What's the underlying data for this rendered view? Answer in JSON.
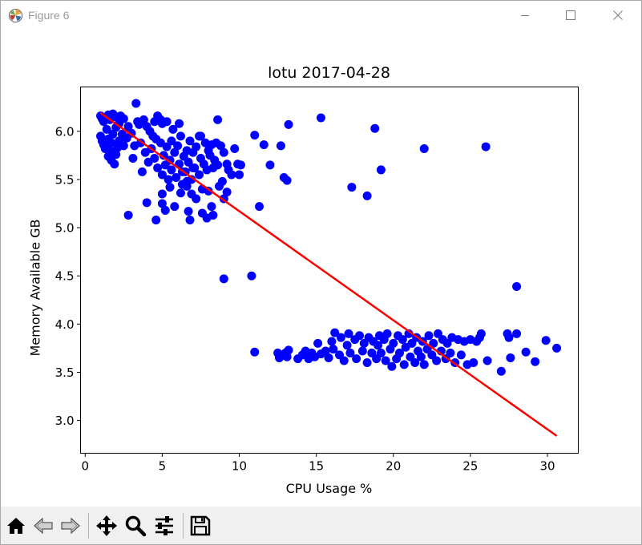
{
  "window": {
    "title": "Figure 6",
    "icons": [
      "matplotlib-icon",
      "minimize-icon",
      "maximize-icon",
      "close-icon"
    ]
  },
  "toolbar": {
    "buttons": [
      "home-icon",
      "back-icon",
      "forward-icon",
      "pan-icon",
      "zoom-icon",
      "configure-subplots-icon",
      "save-icon"
    ]
  },
  "chart_data": {
    "type": "scatter",
    "title": "lotu 2017-04-28",
    "xlabel": "CPU Usage %",
    "ylabel": "Memory Available GB",
    "xlim": [
      -0.3,
      32
    ],
    "ylim": [
      2.66,
      6.46
    ],
    "xticks": [
      0,
      5,
      10,
      15,
      20,
      25,
      30
    ],
    "xtick_labels": [
      "0",
      "5",
      "10",
      "15",
      "20",
      "25",
      "30"
    ],
    "yticks": [
      3.0,
      3.5,
      4.0,
      4.5,
      5.0,
      5.5,
      6.0
    ],
    "ytick_labels": [
      "3.0",
      "3.5",
      "4.0",
      "4.5",
      "5.0",
      "5.5",
      "6.0"
    ],
    "grid": false,
    "legend": "none",
    "colors": {
      "points": "#0000ff",
      "fit_line": "#ff0000"
    },
    "series": [
      {
        "kind": "points",
        "points": [
          [
            1.0,
            6.16
          ],
          [
            1.1,
            6.13
          ],
          [
            1.2,
            6.1
          ],
          [
            1.3,
            6.14
          ],
          [
            1.5,
            6.17
          ],
          [
            1.6,
            6.12
          ],
          [
            1.8,
            6.18
          ],
          [
            2.0,
            6.15
          ],
          [
            2.3,
            6.16
          ],
          [
            2.5,
            6.13
          ],
          [
            2.2,
            6.08
          ],
          [
            1.0,
            5.95
          ],
          [
            1.1,
            5.9
          ],
          [
            1.2,
            5.86
          ],
          [
            1.4,
            6.02
          ],
          [
            1.5,
            5.92
          ],
          [
            1.6,
            5.8
          ],
          [
            1.7,
            5.88
          ],
          [
            1.8,
            5.97
          ],
          [
            2.0,
            6.04
          ],
          [
            2.1,
            5.83
          ],
          [
            1.3,
            5.82
          ],
          [
            1.5,
            5.74
          ],
          [
            1.7,
            5.7
          ],
          [
            1.9,
            5.66
          ],
          [
            2.0,
            5.76
          ],
          [
            2.2,
            5.9
          ],
          [
            2.4,
            5.97
          ],
          [
            2.5,
            5.85
          ],
          [
            2.7,
            5.93
          ],
          [
            2.8,
            6.05
          ],
          [
            3.0,
            5.98
          ],
          [
            3.3,
            6.29
          ],
          [
            3.4,
            6.1
          ],
          [
            3.5,
            6.07
          ],
          [
            3.6,
            5.88
          ],
          [
            3.8,
            6.12
          ],
          [
            4.0,
            6.05
          ],
          [
            4.2,
            6.0
          ],
          [
            4.4,
            5.95
          ],
          [
            4.5,
            6.1
          ],
          [
            4.7,
            6.16
          ],
          [
            4.9,
            6.12
          ],
          [
            5.0,
            6.08
          ],
          [
            5.3,
            6.1
          ],
          [
            3.1,
            5.72
          ],
          [
            3.2,
            5.85
          ],
          [
            3.7,
            5.58
          ],
          [
            3.9,
            5.78
          ],
          [
            4.1,
            5.68
          ],
          [
            4.3,
            5.82
          ],
          [
            4.5,
            5.72
          ],
          [
            4.7,
            5.62
          ],
          [
            4.9,
            5.88
          ],
          [
            5.0,
            5.55
          ],
          [
            5.1,
            5.75
          ],
          [
            5.2,
            5.65
          ],
          [
            5.3,
            5.84
          ],
          [
            5.4,
            5.5
          ],
          [
            5.5,
            5.7
          ],
          [
            5.6,
            5.6
          ],
          [
            5.8,
            5.78
          ],
          [
            5.9,
            5.52
          ],
          [
            6.0,
            5.85
          ],
          [
            6.1,
            5.66
          ],
          [
            6.2,
            5.95
          ],
          [
            6.3,
            5.45
          ],
          [
            6.4,
            5.74
          ],
          [
            6.5,
            5.58
          ],
          [
            6.6,
            5.8
          ],
          [
            6.7,
            5.68
          ],
          [
            6.8,
            5.9
          ],
          [
            6.9,
            5.5
          ],
          [
            7.0,
            5.78
          ],
          [
            7.1,
            5.62
          ],
          [
            7.2,
            5.84
          ],
          [
            7.4,
            5.55
          ],
          [
            7.5,
            5.72
          ],
          [
            7.6,
            5.4
          ],
          [
            7.7,
            5.66
          ],
          [
            7.8,
            5.88
          ],
          [
            7.9,
            5.6
          ],
          [
            8.0,
            5.8
          ],
          [
            8.1,
            5.75
          ],
          [
            8.2,
            5.86
          ],
          [
            8.3,
            5.62
          ],
          [
            8.4,
            5.7
          ],
          [
            8.5,
            5.88
          ],
          [
            8.6,
            5.65
          ],
          [
            8.8,
            5.85
          ],
          [
            9.0,
            5.78
          ],
          [
            9.2,
            5.66
          ],
          [
            9.3,
            5.6
          ],
          [
            9.5,
            5.55
          ],
          [
            9.7,
            5.82
          ],
          [
            9.9,
            5.66
          ],
          [
            10.1,
            5.65
          ],
          [
            10.0,
            5.55
          ],
          [
            6.1,
            6.08
          ],
          [
            8.6,
            6.12
          ],
          [
            5.7,
            6.02
          ],
          [
            7.5,
            5.95
          ],
          [
            8.9,
            5.48
          ],
          [
            8.7,
            5.43
          ],
          [
            9.2,
            5.37
          ],
          [
            9.0,
            5.3
          ],
          [
            8.0,
            5.38
          ],
          [
            8.2,
            5.22
          ],
          [
            7.2,
            5.3
          ],
          [
            7.6,
            5.15
          ],
          [
            6.6,
            5.43
          ],
          [
            6.2,
            5.36
          ],
          [
            5.5,
            5.42
          ],
          [
            5.0,
            5.35
          ],
          [
            5.0,
            5.25
          ],
          [
            6.7,
            5.17
          ],
          [
            6.8,
            5.08
          ],
          [
            4.6,
            5.08
          ],
          [
            5.2,
            5.18
          ],
          [
            4.0,
            5.26
          ],
          [
            2.8,
            5.13
          ],
          [
            7.9,
            5.1
          ],
          [
            8.3,
            5.13
          ],
          [
            5.8,
            5.22
          ],
          [
            6.9,
            5.35
          ],
          [
            6.3,
            5.58
          ],
          [
            6.6,
            5.48
          ],
          [
            7.0,
            5.62
          ],
          [
            7.4,
            5.95
          ],
          [
            5.6,
            5.9
          ],
          [
            4.6,
            5.92
          ],
          [
            11.0,
            5.96
          ],
          [
            11.6,
            5.86
          ],
          [
            12.0,
            5.65
          ],
          [
            12.7,
            5.85
          ],
          [
            12.9,
            5.52
          ],
          [
            13.1,
            5.49
          ],
          [
            13.2,
            6.07
          ],
          [
            15.3,
            6.14
          ],
          [
            18.8,
            6.03
          ],
          [
            22.0,
            5.82
          ],
          [
            26.0,
            5.84
          ],
          [
            19.2,
            5.6
          ],
          [
            17.3,
            5.42
          ],
          [
            18.3,
            5.33
          ],
          [
            11.3,
            5.22
          ],
          [
            9.0,
            4.47
          ],
          [
            10.8,
            4.5
          ],
          [
            28.0,
            4.39
          ],
          [
            11.0,
            3.71
          ],
          [
            12.5,
            3.7
          ],
          [
            12.6,
            3.65
          ],
          [
            12.8,
            3.68
          ],
          [
            13.0,
            3.7
          ],
          [
            13.1,
            3.66
          ],
          [
            13.2,
            3.73
          ],
          [
            13.8,
            3.64
          ],
          [
            14.1,
            3.68
          ],
          [
            14.3,
            3.72
          ],
          [
            14.5,
            3.64
          ],
          [
            14.7,
            3.7
          ],
          [
            14.9,
            3.66
          ],
          [
            15.1,
            3.8
          ],
          [
            15.3,
            3.69
          ],
          [
            15.6,
            3.72
          ],
          [
            15.8,
            3.65
          ],
          [
            16.0,
            3.82
          ],
          [
            16.1,
            3.74
          ],
          [
            16.2,
            3.91
          ],
          [
            16.5,
            3.68
          ],
          [
            16.6,
            3.86
          ],
          [
            16.8,
            3.62
          ],
          [
            17.0,
            3.78
          ],
          [
            17.1,
            3.9
          ],
          [
            17.2,
            3.7
          ],
          [
            17.5,
            3.84
          ],
          [
            17.6,
            3.64
          ],
          [
            17.8,
            3.88
          ],
          [
            18.0,
            3.72
          ],
          [
            18.1,
            3.8
          ],
          [
            18.3,
            3.6
          ],
          [
            18.4,
            3.86
          ],
          [
            18.6,
            3.7
          ],
          [
            18.7,
            3.82
          ],
          [
            18.9,
            3.64
          ],
          [
            19.0,
            3.78
          ],
          [
            19.1,
            3.88
          ],
          [
            19.2,
            3.7
          ],
          [
            19.4,
            3.84
          ],
          [
            19.5,
            3.62
          ],
          [
            19.6,
            3.9
          ],
          [
            19.8,
            3.74
          ],
          [
            19.9,
            3.56
          ],
          [
            20.0,
            3.8
          ],
          [
            20.2,
            3.64
          ],
          [
            20.3,
            3.88
          ],
          [
            20.4,
            3.7
          ],
          [
            20.6,
            3.84
          ],
          [
            20.7,
            3.58
          ],
          [
            20.8,
            3.76
          ],
          [
            21.0,
            3.9
          ],
          [
            21.1,
            3.66
          ],
          [
            21.2,
            3.8
          ],
          [
            21.4,
            3.6
          ],
          [
            21.5,
            3.86
          ],
          [
            21.6,
            3.72
          ],
          [
            21.8,
            3.66
          ],
          [
            21.9,
            3.82
          ],
          [
            22.0,
            3.58
          ],
          [
            22.2,
            3.74
          ],
          [
            22.3,
            3.88
          ],
          [
            22.5,
            3.68
          ],
          [
            22.6,
            3.8
          ],
          [
            22.8,
            3.62
          ],
          [
            22.9,
            3.9
          ],
          [
            23.1,
            3.72
          ],
          [
            23.2,
            3.84
          ],
          [
            23.4,
            3.64
          ],
          [
            23.5,
            3.8
          ],
          [
            23.7,
            3.7
          ],
          [
            23.8,
            3.86
          ],
          [
            24.0,
            3.6
          ],
          [
            24.2,
            3.84
          ],
          [
            24.4,
            3.68
          ],
          [
            24.6,
            3.82
          ],
          [
            24.8,
            3.58
          ],
          [
            25.0,
            3.84
          ],
          [
            25.2,
            3.6
          ],
          [
            25.4,
            3.82
          ],
          [
            25.6,
            3.86
          ],
          [
            25.7,
            3.9
          ],
          [
            26.1,
            3.62
          ],
          [
            27.0,
            3.51
          ],
          [
            27.4,
            3.9
          ],
          [
            27.5,
            3.86
          ],
          [
            27.6,
            3.65
          ],
          [
            28.0,
            3.9
          ],
          [
            28.6,
            3.71
          ],
          [
            29.2,
            3.61
          ],
          [
            29.9,
            3.83
          ],
          [
            30.6,
            3.75
          ]
        ]
      },
      {
        "kind": "fit_line",
        "x": [
          1.0,
          30.6
        ],
        "y": [
          6.19,
          2.84
        ]
      }
    ]
  }
}
